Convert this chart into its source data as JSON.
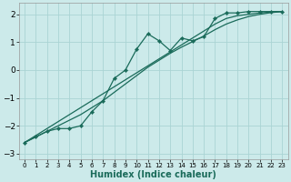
{
  "title": "",
  "xlabel": "Humidex (Indice chaleur)",
  "ylabel": "",
  "xlim": [
    -0.5,
    23.5
  ],
  "ylim": [
    -3.2,
    2.4
  ],
  "bg_color": "#cceaea",
  "grid_color": "#aad4d4",
  "line_color": "#1a6b5a",
  "x_data": [
    0,
    1,
    2,
    3,
    4,
    5,
    6,
    7,
    8,
    9,
    10,
    11,
    12,
    13,
    14,
    15,
    16,
    17,
    18,
    19,
    20,
    21,
    22,
    23
  ],
  "y_main": [
    -2.6,
    -2.4,
    -2.2,
    -2.1,
    -2.1,
    -2.0,
    -1.5,
    -1.1,
    -0.3,
    0.0,
    0.75,
    1.3,
    1.05,
    0.7,
    1.15,
    1.05,
    1.2,
    1.85,
    2.05,
    2.05,
    2.1,
    2.1,
    2.1,
    2.1
  ],
  "y_line1": [
    -2.6,
    -2.35,
    -2.1,
    -1.85,
    -1.6,
    -1.35,
    -1.1,
    -0.85,
    -0.6,
    -0.35,
    -0.1,
    0.15,
    0.4,
    0.65,
    0.9,
    1.15,
    1.4,
    1.65,
    1.85,
    1.95,
    2.0,
    2.05,
    2.08,
    2.1
  ],
  "y_line2": [
    -2.6,
    -2.4,
    -2.2,
    -2.0,
    -1.8,
    -1.6,
    -1.35,
    -1.1,
    -0.8,
    -0.5,
    -0.2,
    0.1,
    0.35,
    0.6,
    0.82,
    1.02,
    1.22,
    1.45,
    1.65,
    1.8,
    1.92,
    2.0,
    2.06,
    2.1
  ],
  "xticks": [
    0,
    1,
    2,
    3,
    4,
    5,
    6,
    7,
    8,
    9,
    10,
    11,
    12,
    13,
    14,
    15,
    16,
    17,
    18,
    19,
    20,
    21,
    22,
    23
  ],
  "yticks": [
    -3,
    -2,
    -1,
    0,
    1,
    2
  ],
  "xlabel_fontsize": 7,
  "tick_fontsize": 6,
  "lw_main": 0.9,
  "lw_smooth": 0.9,
  "marker_size": 2.2
}
